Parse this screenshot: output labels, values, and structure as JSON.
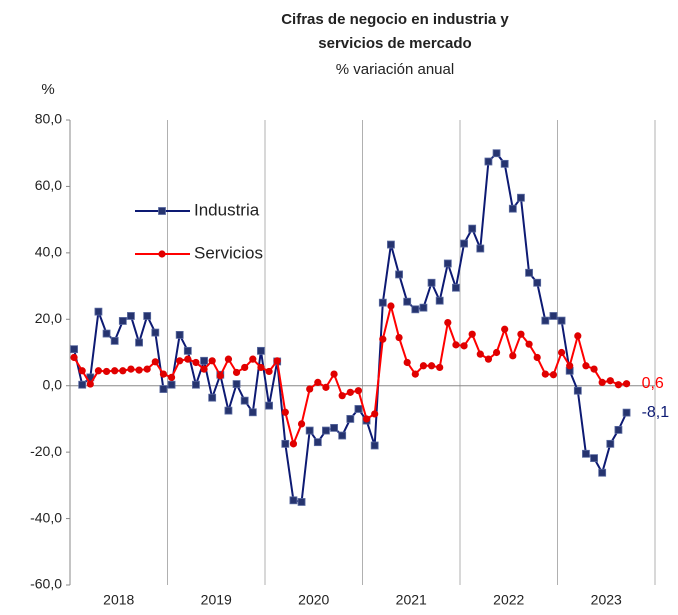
{
  "chart_data": {
    "type": "line",
    "title_lines": [
      "Cifras de negocio en industria y",
      "servicios de mercado"
    ],
    "subtitle": "% variación anual",
    "y_label": "%",
    "categories": [
      null,
      null,
      null,
      null,
      null,
      null,
      "2018",
      null,
      null,
      null,
      null,
      null,
      null,
      null,
      null,
      null,
      null,
      null,
      "2019",
      null,
      null,
      null,
      null,
      null,
      null,
      null,
      null,
      null,
      null,
      null,
      "2020",
      null,
      null,
      null,
      null,
      null,
      null,
      null,
      null,
      null,
      null,
      null,
      "2021",
      null,
      null,
      null,
      null,
      null,
      null,
      null,
      null,
      null,
      null,
      null,
      "2022",
      null,
      null,
      null,
      null,
      null,
      null,
      null,
      null,
      null,
      null,
      null,
      "2023",
      null,
      null
    ],
    "series": [
      {
        "name": "Industria",
        "color": "#0d1a73",
        "marker_color": "#26346f",
        "values": [
          11,
          0.3,
          2.5,
          22.3,
          15.7,
          13.5,
          19.5,
          21,
          13,
          21,
          16,
          -1,
          0.3,
          15.3,
          10.5,
          0.3,
          7.5,
          -3.6,
          3.3,
          -7.5,
          0.5,
          -4.5,
          -8,
          10.5,
          -6,
          7.3,
          -17.5,
          -34.5,
          -35,
          -13.5,
          -17,
          -13.5,
          -12.7,
          -15,
          -10,
          -7,
          -10.5,
          -18,
          25,
          42.5,
          33.5,
          25.3,
          23,
          23.5,
          31,
          25.6,
          36.8,
          29.5,
          42.8,
          47.3,
          41.3,
          67.5,
          70,
          66.8,
          53.3,
          56.6,
          34,
          31,
          19.6,
          21,
          19.6,
          4.5,
          -1.5,
          -20.5,
          -21.8,
          -26.2,
          -17.5,
          -13.3,
          -8.1
        ],
        "value_labels": [
          null,
          null,
          null,
          null,
          null,
          null,
          null,
          null,
          null,
          null,
          null,
          null,
          null,
          null,
          null,
          null,
          null,
          null,
          null,
          null,
          null,
          null,
          null,
          null,
          null,
          null,
          null,
          null,
          null,
          null,
          null,
          null,
          null,
          null,
          null,
          null,
          null,
          null,
          null,
          null,
          null,
          null,
          null,
          null,
          null,
          null,
          null,
          null,
          null,
          null,
          null,
          null,
          null,
          null,
          null,
          null,
          null,
          null,
          null,
          null,
          null,
          null,
          null,
          null,
          null,
          null,
          null,
          null,
          "-8,1"
        ]
      },
      {
        "name": "Servicios",
        "color": "#ff0000",
        "marker_color": "#e00000",
        "values": [
          8.5,
          4.5,
          0.5,
          4.5,
          4.3,
          4.5,
          4.5,
          5,
          4.7,
          5,
          7.2,
          3.5,
          2.5,
          7.5,
          8,
          7,
          5,
          7.5,
          3,
          8,
          4,
          5.5,
          8,
          5.5,
          4.3,
          7.5,
          -8,
          -17.5,
          -11.5,
          -1,
          1,
          -0.5,
          3.5,
          -3,
          -2,
          -1.5,
          -10,
          -8.5,
          14,
          24,
          14.5,
          7,
          3.5,
          6,
          6,
          5.5,
          19,
          12.3,
          12,
          15.5,
          9.5,
          8,
          10,
          17,
          9,
          15.5,
          12.5,
          8.5,
          3.5,
          3.3,
          10,
          6,
          15,
          6,
          5,
          1,
          1.5,
          0.3,
          0.6
        ],
        "value_labels": [
          null,
          null,
          null,
          null,
          null,
          null,
          null,
          null,
          null,
          null,
          null,
          null,
          null,
          null,
          null,
          null,
          null,
          null,
          null,
          null,
          null,
          null,
          null,
          null,
          null,
          null,
          null,
          null,
          null,
          null,
          null,
          null,
          null,
          null,
          null,
          null,
          null,
          null,
          null,
          null,
          null,
          null,
          null,
          null,
          null,
          null,
          null,
          null,
          null,
          null,
          null,
          null,
          null,
          null,
          null,
          null,
          null,
          null,
          null,
          null,
          null,
          null,
          null,
          null,
          null,
          null,
          null,
          null,
          "0,6"
        ]
      }
    ],
    "ylim": [
      -60,
      80
    ],
    "yticks": [
      {
        "value": -60,
        "label": "-60,0"
      },
      {
        "value": -40,
        "label": "-40,0"
      },
      {
        "value": -20,
        "label": "-20,0"
      },
      {
        "value": 0,
        "label": "0,0"
      },
      {
        "value": 20,
        "label": "20,0"
      },
      {
        "value": 40,
        "label": "40,0"
      },
      {
        "value": 60,
        "label": "60,0"
      },
      {
        "value": 80,
        "label": "80,0"
      }
    ],
    "grid": false
  }
}
